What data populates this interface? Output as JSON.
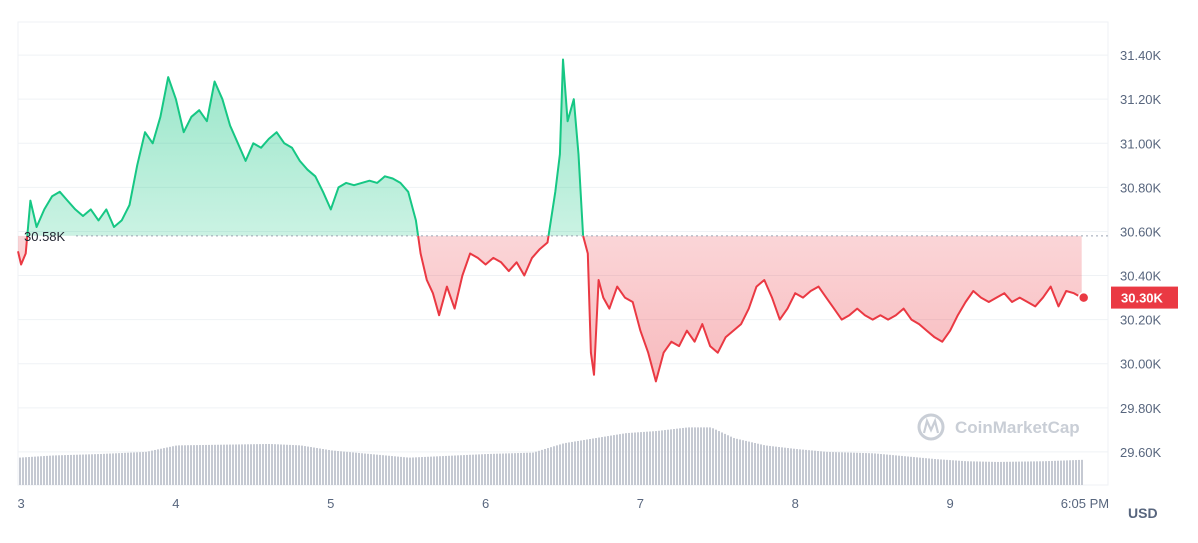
{
  "watermark": {
    "text": "CoinMarketCap"
  },
  "colors": {
    "up": "#16c784",
    "down": "#ea3943",
    "grid": "#eff2f5",
    "volume": "#c5c9d2",
    "text": "#58667e"
  },
  "chart_data": {
    "type": "area",
    "baseline_value": 30.58,
    "baseline_label": "30.58K",
    "current_value": 30.3,
    "current_label": "30.30K",
    "unit_label": "USD",
    "y_ticks": [
      "31.40K",
      "31.20K",
      "31.00K",
      "30.80K",
      "30.60K",
      "30.40K",
      "30.20K",
      "30.00K",
      "29.80K",
      "29.60K"
    ],
    "y_tick_values": [
      31.4,
      31.2,
      31.0,
      30.8,
      30.6,
      30.4,
      30.2,
      30.0,
      29.8,
      29.6
    ],
    "x_ticks": [
      "3",
      "4",
      "5",
      "6",
      "7",
      "8",
      "9",
      "6:05 PM"
    ],
    "x_tick_values": [
      3,
      4,
      5,
      6,
      7,
      8,
      9,
      10
    ],
    "ylim": [
      29.45,
      31.55
    ],
    "xlim": [
      2.98,
      10.02
    ],
    "grid": true,
    "price": [
      [
        2.98,
        30.51
      ],
      [
        3.0,
        30.45
      ],
      [
        3.03,
        30.5
      ],
      [
        3.06,
        30.74
      ],
      [
        3.1,
        30.62
      ],
      [
        3.15,
        30.7
      ],
      [
        3.2,
        30.76
      ],
      [
        3.25,
        30.78
      ],
      [
        3.3,
        30.74
      ],
      [
        3.35,
        30.7
      ],
      [
        3.4,
        30.67
      ],
      [
        3.45,
        30.7
      ],
      [
        3.5,
        30.65
      ],
      [
        3.55,
        30.7
      ],
      [
        3.6,
        30.62
      ],
      [
        3.65,
        30.65
      ],
      [
        3.7,
        30.72
      ],
      [
        3.75,
        30.9
      ],
      [
        3.8,
        31.05
      ],
      [
        3.85,
        31.0
      ],
      [
        3.9,
        31.12
      ],
      [
        3.95,
        31.3
      ],
      [
        4.0,
        31.2
      ],
      [
        4.05,
        31.05
      ],
      [
        4.1,
        31.12
      ],
      [
        4.15,
        31.15
      ],
      [
        4.2,
        31.1
      ],
      [
        4.25,
        31.28
      ],
      [
        4.3,
        31.2
      ],
      [
        4.35,
        31.08
      ],
      [
        4.4,
        31.0
      ],
      [
        4.45,
        30.92
      ],
      [
        4.5,
        31.0
      ],
      [
        4.55,
        30.98
      ],
      [
        4.6,
        31.02
      ],
      [
        4.65,
        31.05
      ],
      [
        4.7,
        31.0
      ],
      [
        4.75,
        30.98
      ],
      [
        4.8,
        30.92
      ],
      [
        4.85,
        30.88
      ],
      [
        4.9,
        30.85
      ],
      [
        4.95,
        30.78
      ],
      [
        5.0,
        30.7
      ],
      [
        5.05,
        30.8
      ],
      [
        5.1,
        30.82
      ],
      [
        5.15,
        30.81
      ],
      [
        5.2,
        30.82
      ],
      [
        5.25,
        30.83
      ],
      [
        5.3,
        30.82
      ],
      [
        5.35,
        30.85
      ],
      [
        5.4,
        30.84
      ],
      [
        5.45,
        30.82
      ],
      [
        5.5,
        30.78
      ],
      [
        5.55,
        30.65
      ],
      [
        5.58,
        30.5
      ],
      [
        5.62,
        30.38
      ],
      [
        5.66,
        30.32
      ],
      [
        5.7,
        30.22
      ],
      [
        5.75,
        30.35
      ],
      [
        5.8,
        30.25
      ],
      [
        5.85,
        30.4
      ],
      [
        5.9,
        30.5
      ],
      [
        5.95,
        30.48
      ],
      [
        6.0,
        30.45
      ],
      [
        6.05,
        30.48
      ],
      [
        6.1,
        30.46
      ],
      [
        6.15,
        30.42
      ],
      [
        6.2,
        30.46
      ],
      [
        6.25,
        30.4
      ],
      [
        6.3,
        30.48
      ],
      [
        6.35,
        30.52
      ],
      [
        6.4,
        30.55
      ],
      [
        6.45,
        30.78
      ],
      [
        6.48,
        30.95
      ],
      [
        6.5,
        31.38
      ],
      [
        6.53,
        31.1
      ],
      [
        6.57,
        31.2
      ],
      [
        6.6,
        30.95
      ],
      [
        6.63,
        30.58
      ],
      [
        6.66,
        30.5
      ],
      [
        6.68,
        30.05
      ],
      [
        6.7,
        29.95
      ],
      [
        6.73,
        30.38
      ],
      [
        6.76,
        30.3
      ],
      [
        6.8,
        30.25
      ],
      [
        6.85,
        30.35
      ],
      [
        6.9,
        30.3
      ],
      [
        6.95,
        30.28
      ],
      [
        7.0,
        30.15
      ],
      [
        7.05,
        30.05
      ],
      [
        7.1,
        29.92
      ],
      [
        7.15,
        30.05
      ],
      [
        7.2,
        30.1
      ],
      [
        7.25,
        30.08
      ],
      [
        7.3,
        30.15
      ],
      [
        7.35,
        30.1
      ],
      [
        7.4,
        30.18
      ],
      [
        7.45,
        30.08
      ],
      [
        7.5,
        30.05
      ],
      [
        7.55,
        30.12
      ],
      [
        7.6,
        30.15
      ],
      [
        7.65,
        30.18
      ],
      [
        7.7,
        30.25
      ],
      [
        7.75,
        30.35
      ],
      [
        7.8,
        30.38
      ],
      [
        7.85,
        30.3
      ],
      [
        7.9,
        30.2
      ],
      [
        7.95,
        30.25
      ],
      [
        8.0,
        30.32
      ],
      [
        8.05,
        30.3
      ],
      [
        8.1,
        30.33
      ],
      [
        8.15,
        30.35
      ],
      [
        8.2,
        30.3
      ],
      [
        8.25,
        30.25
      ],
      [
        8.3,
        30.2
      ],
      [
        8.35,
        30.22
      ],
      [
        8.4,
        30.25
      ],
      [
        8.45,
        30.22
      ],
      [
        8.5,
        30.2
      ],
      [
        8.55,
        30.22
      ],
      [
        8.6,
        30.2
      ],
      [
        8.65,
        30.22
      ],
      [
        8.7,
        30.25
      ],
      [
        8.75,
        30.2
      ],
      [
        8.8,
        30.18
      ],
      [
        8.85,
        30.15
      ],
      [
        8.9,
        30.12
      ],
      [
        8.95,
        30.1
      ],
      [
        9.0,
        30.15
      ],
      [
        9.05,
        30.22
      ],
      [
        9.1,
        30.28
      ],
      [
        9.15,
        30.33
      ],
      [
        9.2,
        30.3
      ],
      [
        9.25,
        30.28
      ],
      [
        9.3,
        30.3
      ],
      [
        9.35,
        30.32
      ],
      [
        9.4,
        30.28
      ],
      [
        9.45,
        30.3
      ],
      [
        9.5,
        30.28
      ],
      [
        9.55,
        30.26
      ],
      [
        9.6,
        30.3
      ],
      [
        9.65,
        30.35
      ],
      [
        9.7,
        30.26
      ],
      [
        9.75,
        30.33
      ],
      [
        9.8,
        30.32
      ],
      [
        9.85,
        30.3
      ]
    ],
    "volume": [
      [
        2.98,
        0.38
      ],
      [
        3.2,
        0.41
      ],
      [
        3.5,
        0.43
      ],
      [
        3.8,
        0.46
      ],
      [
        4.0,
        0.55
      ],
      [
        4.3,
        0.56
      ],
      [
        4.6,
        0.57
      ],
      [
        4.8,
        0.55
      ],
      [
        5.0,
        0.48
      ],
      [
        5.3,
        0.42
      ],
      [
        5.5,
        0.38
      ],
      [
        5.7,
        0.4
      ],
      [
        6.0,
        0.43
      ],
      [
        6.3,
        0.45
      ],
      [
        6.5,
        0.58
      ],
      [
        6.7,
        0.65
      ],
      [
        6.9,
        0.72
      ],
      [
        7.1,
        0.75
      ],
      [
        7.3,
        0.8
      ],
      [
        7.45,
        0.8
      ],
      [
        7.6,
        0.65
      ],
      [
        7.8,
        0.55
      ],
      [
        8.0,
        0.5
      ],
      [
        8.2,
        0.46
      ],
      [
        8.5,
        0.44
      ],
      [
        8.7,
        0.4
      ],
      [
        8.9,
        0.36
      ],
      [
        9.1,
        0.33
      ],
      [
        9.3,
        0.32
      ],
      [
        9.6,
        0.33
      ],
      [
        9.85,
        0.35
      ]
    ]
  }
}
